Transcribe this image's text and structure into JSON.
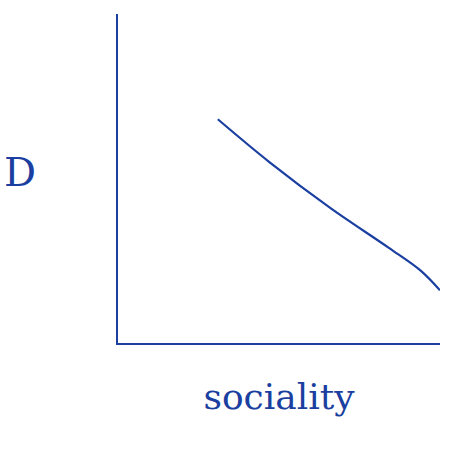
{
  "chart_data": {
    "type": "line",
    "x_label": "sociality",
    "y_label": "D",
    "x": [
      0.31,
      0.47,
      0.66,
      0.84,
      0.94,
      1.0
    ],
    "values": [
      0.68,
      0.55,
      0.41,
      0.29,
      0.22,
      0.16
    ],
    "color": "#1a3fa0",
    "xlim": [
      0,
      1
    ],
    "ylim": [
      0,
      1
    ],
    "grid": false,
    "tick_labels": false
  }
}
